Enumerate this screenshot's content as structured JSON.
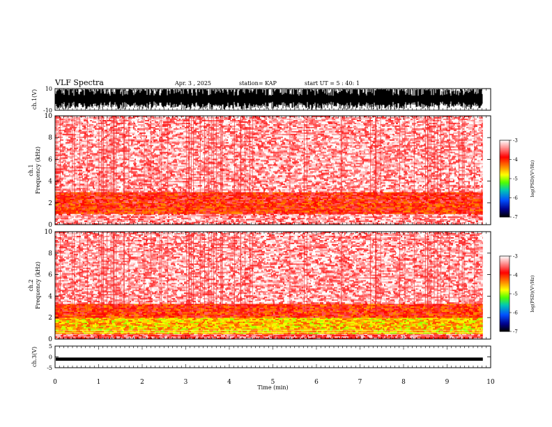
{
  "header": {
    "title": "VLF Spectra",
    "date": "Apr. 3 , 2025",
    "station": "station= KAP",
    "start": "start UT = 5 : 40: 1"
  },
  "chart_data": [
    {
      "type": "line",
      "panel": "ch1-waveform",
      "ylabel": "ch.1(V)",
      "ylim": [
        -10,
        10
      ],
      "yticks": [
        "10",
        "-10"
      ],
      "xlim": [
        0,
        10
      ],
      "note_shape": "dense signal saturating near full scale, amplitude mostly between -10 and 10 V"
    },
    {
      "type": "heatmap",
      "panel": "ch1-spectrogram",
      "ylabel": "ch.1\nFrequency (kHz)",
      "ylim": [
        0,
        10
      ],
      "yticks": [
        "0",
        "2",
        "4",
        "6",
        "8",
        "10"
      ],
      "xlim": [
        0,
        10
      ],
      "colorbar": {
        "label": "log(PSD)(V²/Hz)",
        "range": [
          -7,
          -3
        ],
        "ticks": [
          "-3",
          "-4",
          "-5",
          "-6",
          "-7"
        ]
      },
      "bands": [
        {
          "fmin": 0.0,
          "fmax": 1.0,
          "level": -3.4
        },
        {
          "fmin": 1.0,
          "fmax": 2.0,
          "level": -4.0
        },
        {
          "fmin": 2.0,
          "fmax": 3.0,
          "level": -3.9
        },
        {
          "fmin": 3.0,
          "fmax": 10.0,
          "level": -3.3
        }
      ]
    },
    {
      "type": "heatmap",
      "panel": "ch2-spectrogram",
      "ylabel": "ch.2\nFrequency (kHz)",
      "ylim": [
        0,
        10
      ],
      "yticks": [
        "0",
        "2",
        "4",
        "6",
        "8",
        "10"
      ],
      "xlim": [
        0,
        10
      ],
      "colorbar": {
        "label": "log(PSD)(V²/Hz)",
        "range": [
          -7,
          -3
        ],
        "ticks": [
          "-3",
          "-4",
          "-5",
          "-6",
          "-7"
        ]
      },
      "bands": [
        {
          "fmin": 0.0,
          "fmax": 0.5,
          "level": -3.6
        },
        {
          "fmin": 0.5,
          "fmax": 2.0,
          "level": -4.6
        },
        {
          "fmin": 2.0,
          "fmax": 3.3,
          "level": -4.0
        },
        {
          "fmin": 3.3,
          "fmax": 10.0,
          "level": -3.3
        }
      ]
    },
    {
      "type": "line",
      "panel": "ch3-waveform",
      "ylabel": "ch.3(V)",
      "ylim": [
        -5,
        5
      ],
      "yticks": [
        "5",
        "0",
        "-5"
      ],
      "xlim": [
        0,
        10
      ],
      "note_shape": "thin dense band near -1 V"
    }
  ],
  "xaxis": {
    "label": "Time (min)",
    "ticks": [
      "0",
      "1",
      "2",
      "3",
      "4",
      "5",
      "6",
      "7",
      "8",
      "9",
      "10"
    ],
    "data_end": 9.82
  }
}
